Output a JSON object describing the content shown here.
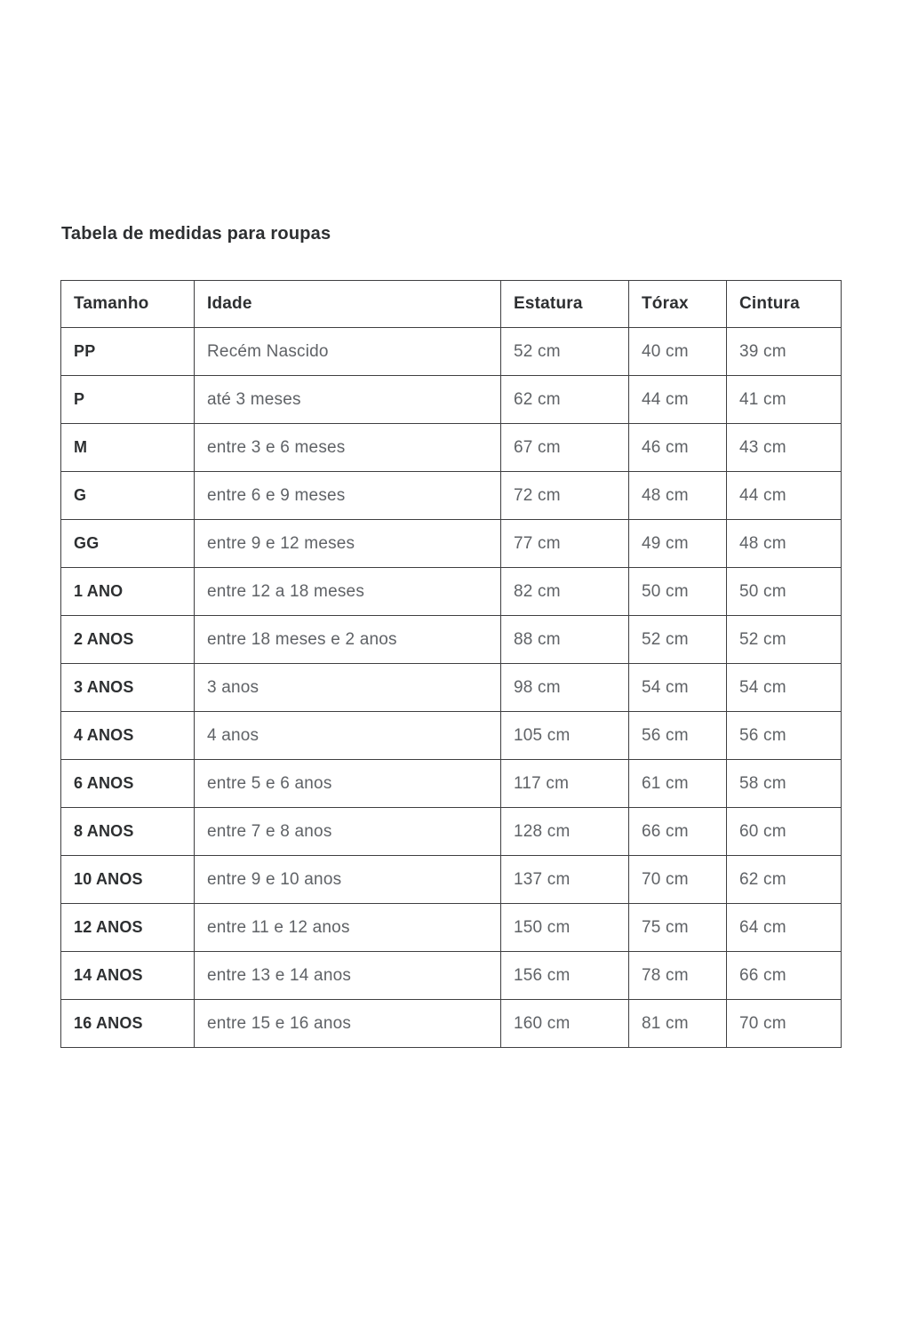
{
  "page": {
    "title": "Tabela de medidas para roupas"
  },
  "table": {
    "columns": [
      "Tamanho",
      "Idade",
      "Estatura",
      "Tórax",
      "Cintura"
    ],
    "rows": [
      {
        "tamanho": "PP",
        "idade": "Recém Nascido",
        "estatura": "52 cm",
        "torax": "40 cm",
        "cintura": "39 cm"
      },
      {
        "tamanho": "P",
        "idade": "até 3 meses",
        "estatura": "62 cm",
        "torax": "44 cm",
        "cintura": "41 cm"
      },
      {
        "tamanho": "M",
        "idade": "entre 3 e 6 meses",
        "estatura": "67 cm",
        "torax": "46 cm",
        "cintura": "43 cm"
      },
      {
        "tamanho": "G",
        "idade": "entre 6 e 9 meses",
        "estatura": "72 cm",
        "torax": "48 cm",
        "cintura": "44 cm"
      },
      {
        "tamanho": "GG",
        "idade": "entre 9 e 12 meses",
        "estatura": "77 cm",
        "torax": "49 cm",
        "cintura": "48 cm"
      },
      {
        "tamanho": "1 ANO",
        "idade": "entre 12 a 18 meses",
        "estatura": "82 cm",
        "torax": "50 cm",
        "cintura": "50 cm"
      },
      {
        "tamanho": "2 ANOS",
        "idade": "entre 18 meses e 2 anos",
        "estatura": "88 cm",
        "torax": "52 cm",
        "cintura": "52 cm"
      },
      {
        "tamanho": "3 ANOS",
        "idade": "3 anos",
        "estatura": "98 cm",
        "torax": "54 cm",
        "cintura": "54 cm"
      },
      {
        "tamanho": "4 ANOS",
        "idade": "4 anos",
        "estatura": "105 cm",
        "torax": "56 cm",
        "cintura": "56 cm"
      },
      {
        "tamanho": "6 ANOS",
        "idade": "entre 5 e 6 anos",
        "estatura": "117 cm",
        "torax": "61 cm",
        "cintura": "58 cm"
      },
      {
        "tamanho": "8 ANOS",
        "idade": "entre 7 e 8 anos",
        "estatura": "128 cm",
        "torax": "66 cm",
        "cintura": "60 cm"
      },
      {
        "tamanho": "10 ANOS",
        "idade": "entre 9 e 10 anos",
        "estatura": "137 cm",
        "torax": "70 cm",
        "cintura": "62 cm"
      },
      {
        "tamanho": "12 ANOS",
        "idade": "entre 11 e 12 anos",
        "estatura": "150 cm",
        "torax": "75 cm",
        "cintura": "64 cm"
      },
      {
        "tamanho": "14 ANOS",
        "idade": "entre 13 e 14 anos",
        "estatura": "156 cm",
        "torax": "78 cm",
        "cintura": "66 cm"
      },
      {
        "tamanho": "16 ANOS",
        "idade": "entre 15 e 16 anos",
        "estatura": "160 cm",
        "torax": "81 cm",
        "cintura": "70 cm"
      }
    ]
  },
  "colors": {
    "heading_text": "#2d2f31",
    "body_text": "#5f6266",
    "table_border": "#3f3f41",
    "background": "#ffffff"
  }
}
